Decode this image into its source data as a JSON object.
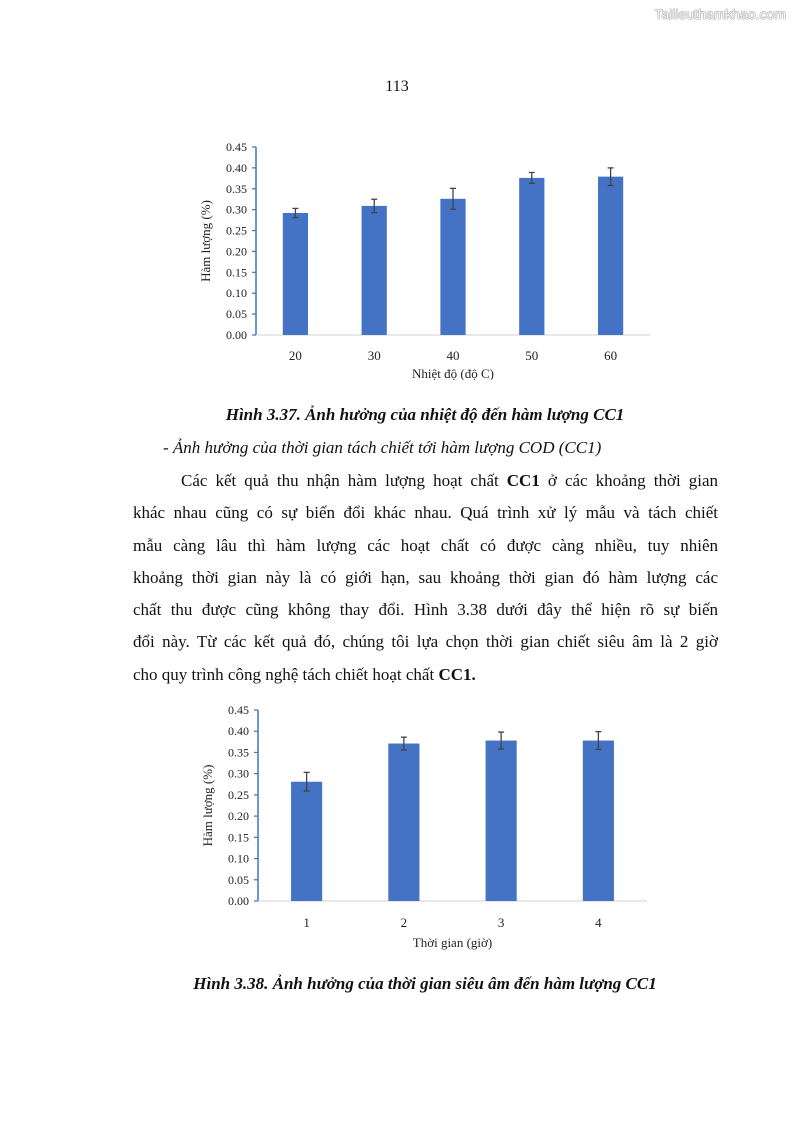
{
  "watermark": "Tailieuthamkhao.com",
  "page_number": "113",
  "figure1_caption": "Hình 3.37. Ảnh hưởng của nhiệt độ đến hàm lượng CC1",
  "subheading": "- Ảnh hưởng của thời gian tách chiết tới hàm lượng COD (CC1)",
  "paragraph_lines": [
    [
      {
        "t": "Các kết quả thu nhận hàm lượng hoạt chất "
      },
      {
        "t": "CC1",
        "b": true
      },
      {
        "t": " ở các khoảng thời gian"
      }
    ],
    [
      {
        "t": "khác nhau cũng có sự biến đổi khác nhau. Quá trình xử lý mẫu và tách chiết"
      }
    ],
    [
      {
        "t": "mẫu càng lâu thì hàm lượng các hoạt chất có được càng nhiều, tuy nhiên"
      }
    ],
    [
      {
        "t": "khoảng thời gian này là có giới hạn, sau khoảng thời gian đó hàm lượng các"
      }
    ],
    [
      {
        "t": "chất thu được cũng không thay đổi. Hình 3.38 dưới đây thể hiện rõ sự biến"
      }
    ],
    [
      {
        "t": "đổi này. Từ các kết quả đó, chúng tôi lựa chọn thời gian chiết siêu âm là 2 giờ"
      }
    ],
    [
      {
        "t": "cho quy trình công nghệ tách chiết hoạt chất "
      },
      {
        "t": "CC1.",
        "b": true
      }
    ]
  ],
  "figure2_caption": "Hình 3.38. Ảnh hưởng của thời gian siêu âm đến hàm lượng CC1",
  "chart_data": [
    {
      "type": "bar",
      "categories": [
        "20",
        "30",
        "40",
        "50",
        "60"
      ],
      "values": [
        0.292,
        0.309,
        0.326,
        0.376,
        0.379
      ],
      "error": [
        0.011,
        0.016,
        0.025,
        0.013,
        0.021
      ],
      "xlabel": "Nhiệt độ (độ C)",
      "ylabel": "Hàm lượng (%)",
      "ylim": [
        0,
        0.45
      ],
      "yticks": [
        "0.00",
        "0.05",
        "0.10",
        "0.15",
        "0.20",
        "0.25",
        "0.30",
        "0.35",
        "0.40",
        "0.45"
      ],
      "bar_color": "#4472C4",
      "axis_color": "#4472C4",
      "grid": false
    },
    {
      "type": "bar",
      "categories": [
        "1",
        "2",
        "3",
        "4"
      ],
      "values": [
        0.281,
        0.371,
        0.378,
        0.378
      ],
      "error": [
        0.022,
        0.015,
        0.02,
        0.021
      ],
      "xlabel": "Thời gian (giờ)",
      "ylabel": "Hàm lượng  (%)",
      "ylim": [
        0,
        0.45
      ],
      "yticks": [
        "0.00",
        "0.05",
        "0.10",
        "0.15",
        "0.20",
        "0.25",
        "0.30",
        "0.35",
        "0.40",
        "0.45"
      ],
      "bar_color": "#4472C4",
      "axis_color": "#4472C4",
      "grid": false
    }
  ]
}
